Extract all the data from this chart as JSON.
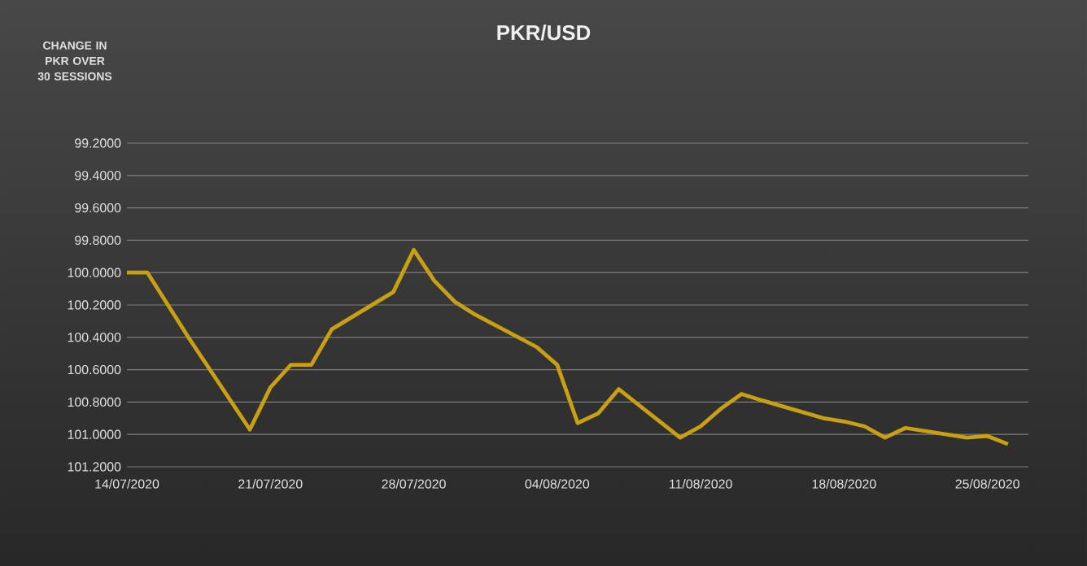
{
  "chart_data": {
    "type": "line",
    "title": "PKR/USD",
    "annotations": [
      "CHANGE IN PKR OVER 30 SESSIONS"
    ],
    "x": [
      "2020-07-14",
      "2020-07-15",
      "2020-07-16",
      "2020-07-17",
      "2020-07-20",
      "2020-07-21",
      "2020-07-22",
      "2020-07-23",
      "2020-07-24",
      "2020-07-27",
      "2020-07-28",
      "2020-07-29",
      "2020-07-30",
      "2020-07-31",
      "2020-08-03",
      "2020-08-04",
      "2020-08-05",
      "2020-08-06",
      "2020-08-07",
      "2020-08-10",
      "2020-08-11",
      "2020-08-12",
      "2020-08-13",
      "2020-08-14",
      "2020-08-17",
      "2020-08-18",
      "2020-08-19",
      "2020-08-20",
      "2020-08-21",
      "2020-08-24",
      "2020-08-25",
      "2020-08-26"
    ],
    "series": [
      {
        "color": "#c8a012",
        "values": [
          100.0,
          100.0,
          100.2,
          100.4,
          100.97,
          100.71,
          100.57,
          100.57,
          100.35,
          100.12,
          99.86,
          100.05,
          100.18,
          100.26,
          100.46,
          100.57,
          100.93,
          100.87,
          100.72,
          101.02,
          100.95,
          100.84,
          100.75,
          100.79,
          100.9,
          100.92,
          100.95,
          101.02,
          100.96,
          101.02,
          101.01,
          101.06
        ]
      }
    ],
    "xlim": [
      "2020-07-14",
      "2020-08-27"
    ],
    "xticks": [
      {
        "value": "2020-07-14",
        "label": "14/07/2020"
      },
      {
        "value": "2020-07-21",
        "label": "21/07/2020"
      },
      {
        "value": "2020-07-28",
        "label": "28/07/2020"
      },
      {
        "value": "2020-08-04",
        "label": "04/08/2020"
      },
      {
        "value": "2020-08-11",
        "label": "11/08/2020"
      },
      {
        "value": "2020-08-18",
        "label": "18/08/2020"
      },
      {
        "value": "2020-08-25",
        "label": "25/08/2020"
      }
    ],
    "ylim": [
      101.2,
      99.2
    ],
    "yticks": [
      {
        "value": 99.2,
        "label": "99.2000"
      },
      {
        "value": 99.4,
        "label": "99.4000"
      },
      {
        "value": 99.6,
        "label": "99.6000"
      },
      {
        "value": 99.8,
        "label": "99.8000"
      },
      {
        "value": 100.0,
        "label": "100.0000"
      },
      {
        "value": 100.2,
        "label": "100.2000"
      },
      {
        "value": 100.4,
        "label": "100.4000"
      },
      {
        "value": 100.6,
        "label": "100.6000"
      },
      {
        "value": 100.8,
        "label": "100.8000"
      },
      {
        "value": 101.0,
        "label": "101.0000"
      },
      {
        "value": 101.2,
        "label": "101.2000"
      }
    ],
    "grid": "y",
    "marker": "none",
    "line_style": "solid"
  }
}
